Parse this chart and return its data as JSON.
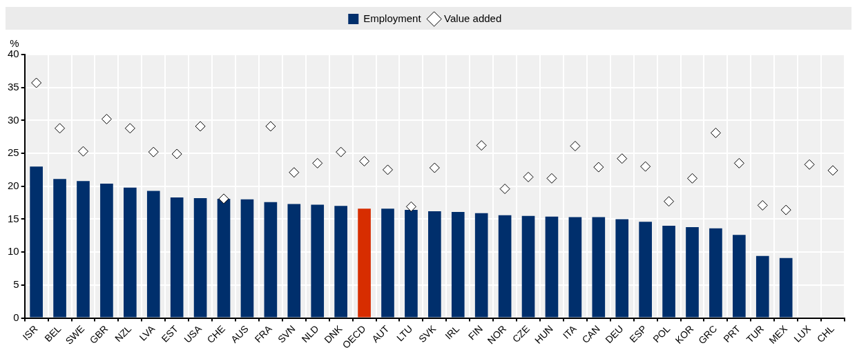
{
  "chart_data": {
    "type": "bar",
    "ylabel": "%",
    "categories": [
      "ISR",
      "BEL",
      "SWE",
      "GBR",
      "NZL",
      "LVA",
      "EST",
      "USA",
      "CHE",
      "AUS",
      "FRA",
      "SVN",
      "NLD",
      "DNK",
      "OECD",
      "AUT",
      "LTU",
      "SVK",
      "IRL",
      "FIN",
      "NOR",
      "CZE",
      "HUN",
      "ITA",
      "CAN",
      "DEU",
      "ESP",
      "POL",
      "KOR",
      "GRC",
      "PRT",
      "TUR",
      "MEX",
      "LUX",
      "CHL"
    ],
    "series": [
      {
        "name": "Employment",
        "color": "#002f6c",
        "colors": [
          "#002f6c",
          "#002f6c",
          "#002f6c",
          "#002f6c",
          "#002f6c",
          "#002f6c",
          "#002f6c",
          "#002f6c",
          "#002f6c",
          "#002f6c",
          "#002f6c",
          "#002f6c",
          "#002f6c",
          "#002f6c",
          "#d72d00",
          "#002f6c",
          "#002f6c",
          "#002f6c",
          "#002f6c",
          "#002f6c",
          "#002f6c",
          "#002f6c",
          "#002f6c",
          "#002f6c",
          "#002f6c",
          "#002f6c",
          "#002f6c",
          "#002f6c",
          "#002f6c",
          "#002f6c",
          "#002f6c",
          "#002f6c",
          "#002f6c",
          "#002f6c",
          "#002f6c"
        ],
        "values": [
          23.0,
          21.1,
          20.8,
          20.4,
          19.8,
          19.3,
          18.3,
          18.2,
          18.1,
          18.0,
          17.6,
          17.3,
          17.2,
          17.0,
          16.6,
          16.6,
          16.4,
          16.2,
          16.1,
          15.9,
          15.6,
          15.5,
          15.4,
          15.3,
          15.3,
          15.0,
          14.6,
          14.0,
          13.8,
          13.6,
          12.6,
          9.4,
          9.1,
          null,
          null
        ]
      },
      {
        "name": "Value added",
        "type": "scatter",
        "color": "#ffffff",
        "values": [
          35.7,
          28.8,
          25.3,
          30.2,
          28.8,
          25.2,
          24.9,
          29.1,
          18.1,
          null,
          29.1,
          22.1,
          23.5,
          25.2,
          23.8,
          22.5,
          16.9,
          22.8,
          null,
          26.2,
          19.6,
          21.4,
          21.2,
          26.1,
          22.9,
          24.2,
          23.0,
          17.7,
          21.2,
          28.1,
          23.5,
          17.1,
          16.4,
          23.3,
          22.4
        ]
      }
    ],
    "ylim": [
      0,
      40
    ],
    "yticks": [
      0,
      5,
      10,
      15,
      20,
      25,
      30,
      35,
      40
    ],
    "grid": true,
    "legend": "top",
    "marker": "diamond"
  }
}
